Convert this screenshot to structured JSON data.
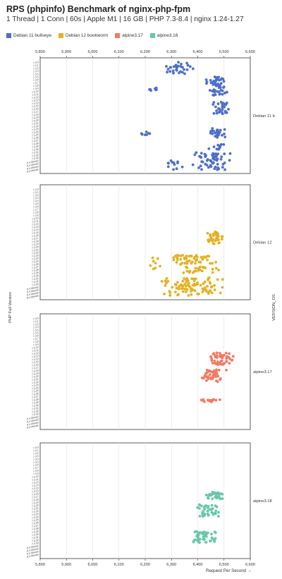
{
  "chart_data": {
    "type": "scatter",
    "title": "RPS (phpinfo) Benchmark of nginx-php-fpm",
    "subtitle": "1 Thread | 1 Conn | 60s | Apple M1 | 16 GB | PHP 7.3-8.4 | nginx 1.24-1.27",
    "xlabel": "Request Per Second →",
    "ylabel": "PHP Full Version",
    "facet_label": "VERSION_OS",
    "xlim": [
      5800,
      6600
    ],
    "xticks": [
      "5,800",
      "5,900",
      "6,000",
      "6,100",
      "6,200",
      "6,300",
      "6,400",
      "6,500",
      "6,600"
    ],
    "grid": "vertical",
    "legend_position": "top-left",
    "y_categories": [
      "7.3.0",
      "7.3.1",
      "7.3.2",
      "7.3.3",
      "7.3.4",
      "7.3.5",
      "7.3.6",
      "7.3.7",
      "7.3.8",
      "7.3.9",
      "7.3.10",
      "7.3.11",
      "7.3.12",
      "7.3.13",
      "7.3.14",
      "7.3.15",
      "7.3.16",
      "7.3.17",
      "7.3.18",
      "7.3.19",
      "7.3.20",
      "7.3.21",
      "7.3.22",
      "7.3.23",
      "7.3.24",
      "7.3.25",
      "7.3.26",
      "7.3.27",
      "7.3.28",
      "7.3.29",
      "7.3.30",
      "7.3.31",
      "7.3.32",
      "7.3.33",
      "8.4.0beta2",
      "8.4.0beta3",
      "8.4.0beta4",
      "8.4.0beta5"
    ],
    "series": [
      {
        "name": "Debian 11 bullseye",
        "panel_label": "Debian 11 b",
        "color": "#4c6fca",
        "x_range": [
          6165,
          6560
        ],
        "clusters": [
          {
            "rows": [
              0,
              4
            ],
            "x": [
              6265,
              6385
            ],
            "n": 30
          },
          {
            "rows": [
              5,
              12
            ],
            "x": [
              6430,
              6520
            ],
            "n": 55
          },
          {
            "rows": [
              9,
              10
            ],
            "x": [
              6210,
              6270
            ],
            "n": 8
          },
          {
            "rows": [
              14,
              18
            ],
            "x": [
              6455,
              6525
            ],
            "n": 30
          },
          {
            "rows": [
              23,
              26
            ],
            "x": [
              6430,
              6510
            ],
            "n": 24
          },
          {
            "rows": [
              24,
              25
            ],
            "x": [
              6170,
              6225
            ],
            "n": 7
          },
          {
            "rows": [
              28,
              30
            ],
            "x": [
              6440,
              6510
            ],
            "n": 12
          },
          {
            "rows": [
              31,
              37
            ],
            "x": [
              6375,
              6535
            ],
            "n": 60
          },
          {
            "rows": [
              34,
              37
            ],
            "x": [
              6265,
              6345
            ],
            "n": 12
          }
        ]
      },
      {
        "name": "Debian 12 bookworm",
        "panel_label": "Debian 12",
        "color": "#e5b020",
        "x_range": [
          6205,
          6545
        ],
        "clusters": [
          {
            "rows": [
              15,
              19
            ],
            "x": [
              6430,
              6500
            ],
            "n": 34
          },
          {
            "rows": [
              23,
              26
            ],
            "x": [
              6280,
              6480
            ],
            "n": 50
          },
          {
            "rows": [
              27,
              29
            ],
            "x": [
              6300,
              6490
            ],
            "n": 24
          },
          {
            "rows": [
              31,
              37
            ],
            "x": [
              6240,
              6510
            ],
            "n": 90
          },
          {
            "rows": [
              24,
              28
            ],
            "x": [
              6210,
              6260
            ],
            "n": 8
          }
        ]
      },
      {
        "name": "alpine3.17",
        "panel_label": "alpine3.17",
        "color": "#f27a63",
        "x_range": [
          6400,
          6560
        ],
        "clusters": [
          {
            "rows": [
              12,
              16
            ],
            "x": [
              6440,
              6545
            ],
            "n": 48
          },
          {
            "rows": [
              18,
              22
            ],
            "x": [
              6400,
              6510
            ],
            "n": 40
          },
          {
            "rows": [
              28,
              29
            ],
            "x": [
              6405,
              6495
            ],
            "n": 16
          }
        ]
      },
      {
        "name": "alpine3.18",
        "panel_label": "alpine3.18",
        "color": "#67c8a7",
        "x_range": [
          6350,
          6510
        ],
        "clusters": [
          {
            "rows": [
              15,
              18
            ],
            "x": [
              6420,
              6500
            ],
            "n": 30
          },
          {
            "rows": [
              20,
              24
            ],
            "x": [
              6390,
              6490
            ],
            "n": 40
          },
          {
            "rows": [
              29,
              33
            ],
            "x": [
              6370,
              6480
            ],
            "n": 45
          }
        ]
      }
    ]
  }
}
